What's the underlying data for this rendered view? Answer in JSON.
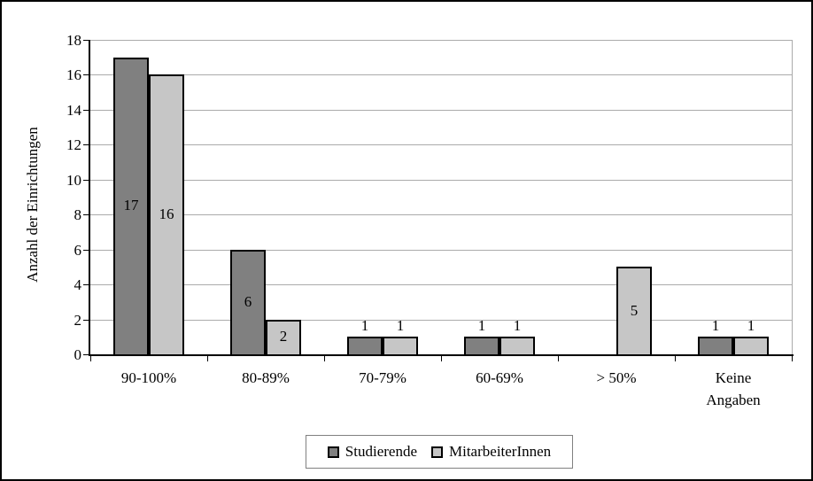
{
  "figure": {
    "background": "#ffffff",
    "border_color": "#000000"
  },
  "chart_data": {
    "type": "bar",
    "title": "",
    "ylabel": "Anzahl der Einrichtungen",
    "xlabel": "",
    "categories": [
      "90-100%",
      "80-89%",
      "70-79%",
      "60-69%",
      "> 50%",
      "Keine Angaben"
    ],
    "series": [
      {
        "name": "Studierende",
        "color": "#808080",
        "values": [
          17,
          6,
          1,
          1,
          0,
          1
        ]
      },
      {
        "name": "MitarbeiterInnen",
        "color": "#c6c6c6",
        "values": [
          16,
          2,
          1,
          1,
          5,
          1
        ]
      }
    ],
    "ylim": [
      0,
      18
    ],
    "ytick_step": 2,
    "yticks": [
      "0",
      "2",
      "4",
      "6",
      "8",
      "10",
      "12",
      "14",
      "16",
      "18"
    ],
    "grid": true,
    "data_labels": true,
    "legend_position": "bottom",
    "colors": {
      "gridline": "#ababab",
      "axis": "#000000",
      "bar_border": "#000000",
      "text": "#000000"
    }
  }
}
